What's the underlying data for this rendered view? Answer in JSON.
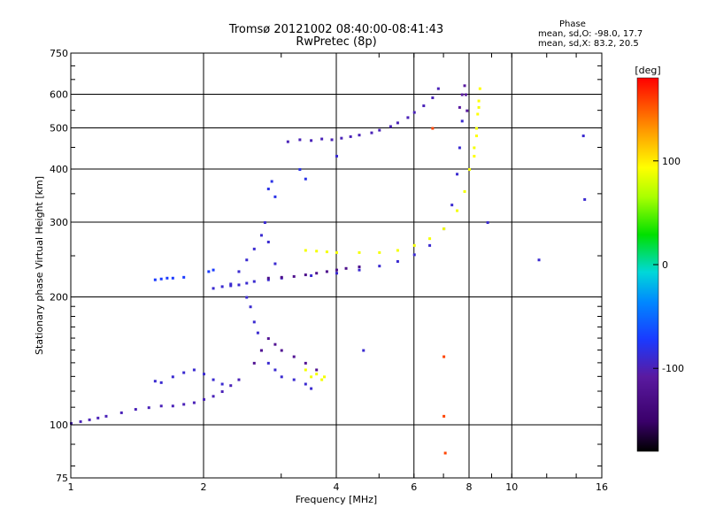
{
  "chart_data": {
    "type": "scatter",
    "title": "Tromsø 20121002 08:40:00-08:41:43",
    "subtitle": "RwPretec (8p)",
    "xlabel": "Frequency [MHz]",
    "ylabel": "Stationary phase Virtual Height [km]",
    "x_scale": "log",
    "y_scale": "log",
    "xlim": [
      1,
      16
    ],
    "ylim": [
      75,
      750
    ],
    "x_ticks": [
      1,
      2,
      4,
      6,
      8,
      10,
      16
    ],
    "y_ticks": [
      75,
      100,
      200,
      300,
      400,
      500,
      600,
      750
    ],
    "grid": true,
    "colorbar": {
      "label": "[deg]",
      "range": [
        -180,
        180
      ],
      "ticks": [
        -100,
        0,
        100
      ]
    },
    "stats": {
      "heading": "Phase",
      "o_mode": "mean, sd,O: -98.0, 17.7",
      "x_mode": "mean, sd,X:  83.2, 20.5"
    },
    "series": [
      {
        "x": [
          1.0,
          1.05,
          1.1,
          1.15,
          1.2,
          1.3,
          1.4,
          1.5,
          1.6,
          1.7,
          1.8,
          1.9,
          2.0,
          2.1,
          2.2,
          2.3,
          2.4
        ],
        "y": [
          101,
          102,
          103,
          104,
          105,
          107,
          109,
          110,
          111,
          111,
          112,
          113,
          115,
          117,
          120,
          124,
          128
        ],
        "phase": -105
      },
      {
        "x": [
          1.55,
          1.6,
          1.7,
          1.8,
          1.9,
          2.0,
          2.1,
          2.2
        ],
        "y": [
          127,
          126,
          130,
          133,
          135,
          132,
          128,
          125
        ],
        "phase": -100
      },
      {
        "x": [
          2.5,
          2.55,
          2.6,
          2.65,
          2.7,
          2.8,
          2.9,
          3.0,
          3.2,
          3.4,
          3.5
        ],
        "y": [
          200,
          190,
          175,
          165,
          150,
          140,
          135,
          130,
          128,
          125,
          122
        ],
        "phase": -100
      },
      {
        "x": [
          2.6,
          2.7,
          2.8,
          2.9,
          3.0,
          3.2,
          3.4,
          3.6
        ],
        "y": [
          140,
          150,
          160,
          155,
          150,
          145,
          140,
          135
        ],
        "phase": -120
      },
      {
        "x": [
          3.4,
          3.5,
          3.6,
          3.7,
          3.75
        ],
        "y": [
          135,
          130,
          132,
          128,
          130
        ],
        "phase": 95
      },
      {
        "x": [
          2.1,
          2.2,
          2.3,
          2.4,
          2.5,
          2.6,
          2.8,
          3.0,
          3.5,
          4.0,
          4.5,
          5.0,
          5.5,
          6.0,
          6.5,
          7.0,
          7.3,
          7.5,
          7.6,
          7.7
        ],
        "y": [
          210,
          212,
          213,
          214,
          216,
          218,
          220,
          222,
          225,
          228,
          232,
          237,
          243,
          252,
          265,
          290,
          330,
          390,
          450,
          520
        ],
        "phase": -100
      },
      {
        "x": [
          2.8,
          3.0,
          3.2,
          3.4,
          3.6,
          3.8,
          4.0,
          4.2,
          4.5
        ],
        "y": [
          222,
          223,
          224,
          226,
          228,
          230,
          232,
          234,
          236
        ],
        "phase": -125
      },
      {
        "x": [
          2.3,
          2.4,
          2.5,
          2.6,
          2.7,
          2.75,
          2.8,
          2.9
        ],
        "y": [
          215,
          230,
          245,
          260,
          280,
          300,
          270,
          240
        ],
        "phase": -100
      },
      {
        "x": [
          3.4,
          3.6,
          3.8,
          4.0,
          4.5,
          5.0,
          5.5,
          6.0,
          6.5,
          7.0,
          7.5,
          7.8,
          8.0,
          8.2,
          8.3,
          8.4
        ],
        "y": [
          258,
          257,
          256,
          255,
          255,
          255,
          258,
          265,
          275,
          290,
          320,
          355,
          400,
          450,
          500,
          560
        ],
        "phase": 95
      },
      {
        "x": [
          7.6,
          7.7,
          7.8,
          7.85,
          7.9
        ],
        "y": [
          560,
          600,
          630,
          600,
          550
        ],
        "phase": -110
      },
      {
        "x": [
          8.2,
          8.3,
          8.35,
          8.4,
          8.45
        ],
        "y": [
          430,
          480,
          540,
          580,
          620
        ],
        "phase": 100
      },
      {
        "x": [
          3.1,
          3.3,
          3.5,
          3.7,
          3.9,
          4.1,
          4.3,
          4.5,
          4.8,
          5.0,
          5.3,
          5.5,
          5.8,
          6.0,
          6.3,
          6.6,
          6.8
        ],
        "y": [
          465,
          470,
          468,
          472,
          470,
          474,
          478,
          482,
          488,
          495,
          505,
          515,
          530,
          545,
          565,
          590,
          620
        ],
        "phase": -105
      },
      {
        "x": [
          2.8,
          2.85,
          2.9,
          3.3,
          3.4
        ],
        "y": [
          360,
          375,
          345,
          400,
          380
        ],
        "phase": -95
      },
      {
        "x": [
          1.55,
          1.6,
          1.65,
          1.7,
          1.8,
          2.05,
          2.1
        ],
        "y": [
          220,
          221,
          222,
          222,
          223,
          230,
          232
        ],
        "phase": -90
      },
      {
        "x": [
          7.0,
          7.0,
          7.05,
          6.6
        ],
        "y": [
          145,
          105,
          86,
          500
        ],
        "phase": 160
      },
      {
        "x": [
          11.5,
          14.5,
          14.6,
          4.0,
          4.6,
          8.8
        ],
        "y": [
          245,
          480,
          340,
          430,
          150,
          300
        ],
        "phase": -100
      }
    ]
  }
}
